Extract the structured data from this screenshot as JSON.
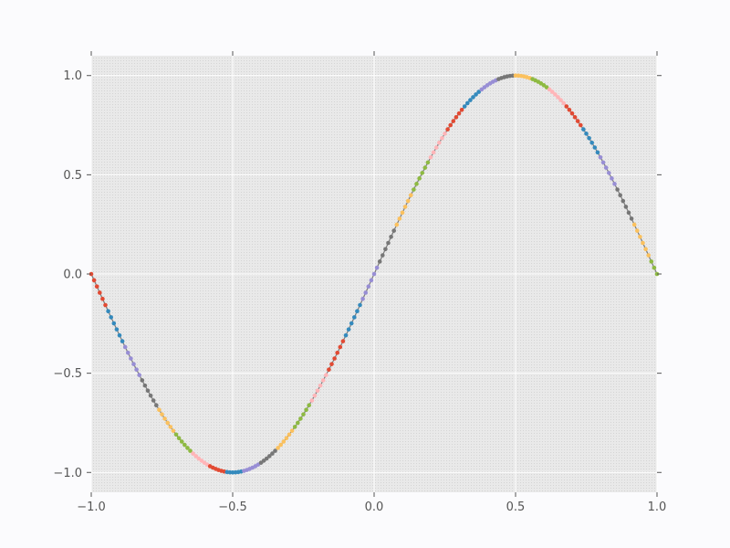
{
  "chart_data": {
    "type": "line",
    "title": "",
    "xlabel": "",
    "ylabel": "",
    "xlim": [
      -1.0,
      1.0
    ],
    "ylim": [
      -1.1,
      1.1
    ],
    "grid": true,
    "x_ticks": [
      -1.0,
      -0.5,
      0.0,
      0.5,
      1.0
    ],
    "y_ticks": [
      -1.0,
      -0.5,
      0.0,
      0.5,
      1.0
    ],
    "x_tick_labels": [
      "−1.0",
      "−0.5",
      "0.0",
      "0.5",
      "1.0"
    ],
    "y_tick_labels": [
      "−1.0",
      "−0.5",
      "0.0",
      "0.5",
      "1.0"
    ],
    "function": "y = sin(pi * x)",
    "sample_x_start": -1.0,
    "sample_x_end": 1.0,
    "sample_count": 201,
    "segment_length": 6,
    "colors": {
      "plot_background": "#e8e8e8",
      "grid": "#ffffff",
      "line": "#7a7a7a",
      "cycle": [
        "#e24a33",
        "#348abd",
        "#988ed5",
        "#777777",
        "#fbc15e",
        "#8eba42",
        "#ffb5b8"
      ]
    }
  }
}
